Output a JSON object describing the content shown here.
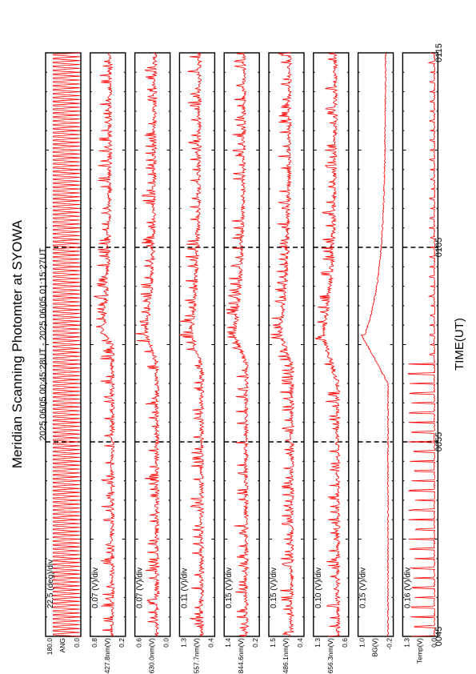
{
  "title": "Meridian Scanning Photomter at SYOWA",
  "time_range": "2025 06/05 00:45:28UT - 2025 06/05 01:15:27UT",
  "x_axis_label": "TIME(UT)",
  "colors": {
    "trace": "#ff0000",
    "axes": "#000000",
    "background": "#ffffff"
  },
  "chart_data": {
    "type": "line",
    "orientation": "rotated-90-clockwise",
    "x_axis": {
      "label": "TIME(UT)",
      "range": [
        "00:45",
        "01:15"
      ],
      "major_ticks": [
        "0045",
        "0055",
        "0105",
        "0115"
      ],
      "dashed_grid_at": [
        "00:55",
        "01:05"
      ]
    },
    "panels": [
      {
        "name": "ANG",
        "scale": "22.5 (deg)/div",
        "ymax": "180.0",
        "ymin": "0.0",
        "pattern": "scan",
        "series_approx": "sawtooth 0-180 deg, ~3 s period (constant scanning)"
      },
      {
        "name": "427.8nm(V)",
        "scale": "0.07 (V)/div",
        "ymax": "0.8",
        "ymin": "0.2",
        "pattern": "rise",
        "onset": "01:00",
        "peak": "01:00.6",
        "base_level_div": 3.0,
        "peak_level_div": 5.2
      },
      {
        "name": "630.0nm(V)",
        "scale": "0.07 (V)/div",
        "ymax": "0.6",
        "ymin": "0.0",
        "pattern": "rise",
        "onset": "00:59",
        "peak": "01:00.6",
        "base_level_div": 3.0,
        "peak_level_div": 5.5
      },
      {
        "name": "557.7nm(V)",
        "scale": "0.11 (V)/div",
        "ymax": "1.3",
        "ymin": "0.4",
        "pattern": "rise",
        "onset": "00:59",
        "peak": "01:00.6",
        "base_level_div": 3.0,
        "peak_level_div": 5.5
      },
      {
        "name": "844.6nm(V)",
        "scale": "0.15 (V)/div",
        "ymax": "1.4",
        "ymin": "0.2",
        "pattern": "rise",
        "onset": "00:59",
        "peak": "01:00.6",
        "base_level_div": 3.0,
        "peak_level_div": 5.8
      },
      {
        "name": "486.1nm(V)",
        "scale": "0.15 (V)/div",
        "ymax": "1.5",
        "ymin": "0.4",
        "pattern": "rise",
        "onset": "00:59",
        "peak": "01:00.6",
        "base_level_div": 2.8,
        "peak_level_div": 5.6
      },
      {
        "name": "656.3nm(V)",
        "scale": "0.10 (V)/div",
        "ymax": "1.3",
        "ymin": "0.6",
        "pattern": "rise",
        "onset": "00:58",
        "peak": "01:00.6",
        "base_level_div": 2.5,
        "peak_level_div": 6.0
      },
      {
        "name": "BG(V)",
        "scale": "0.15 (V)/div",
        "ymax": "1.0",
        "ymin": "-0.2",
        "pattern": "step",
        "onset": "00:58",
        "peak": "01:00.5",
        "base_level_div": 1.2,
        "peak_level_div": 7.2
      },
      {
        "name": "Temp(V)",
        "scale": "0.16 (V)/div",
        "ymax": "1.3",
        "ymin": "0.0",
        "pattern": "spikes",
        "onset": "00:59",
        "base_level_div": 0.8,
        "peak_level_div": 1.5
      }
    ]
  }
}
